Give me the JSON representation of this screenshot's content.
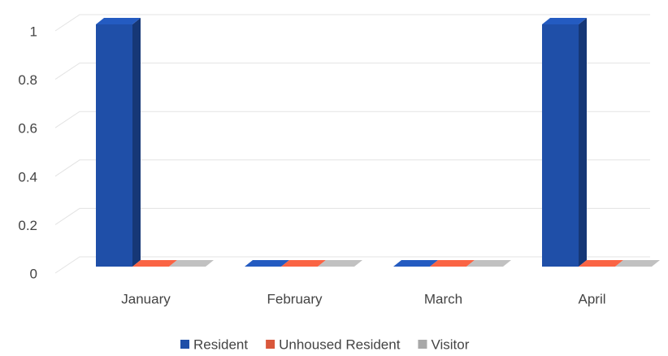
{
  "chart_data": {
    "type": "bar3d",
    "categories": [
      "January",
      "February",
      "March",
      "April"
    ],
    "series": [
      {
        "name": "Resident",
        "color": "#1f4fa8",
        "values": [
          1,
          0,
          0,
          1
        ]
      },
      {
        "name": "Unhoused Resident",
        "color": "#d9573b",
        "values": [
          0,
          0,
          0,
          0
        ]
      },
      {
        "name": "Visitor",
        "color": "#a8a8a8",
        "values": [
          0,
          0,
          0,
          0
        ]
      }
    ],
    "ylim": [
      0,
      1
    ],
    "yticks": [
      0,
      0.2,
      0.4,
      0.6,
      0.8,
      1
    ],
    "grid": true,
    "legend": "bottom"
  }
}
